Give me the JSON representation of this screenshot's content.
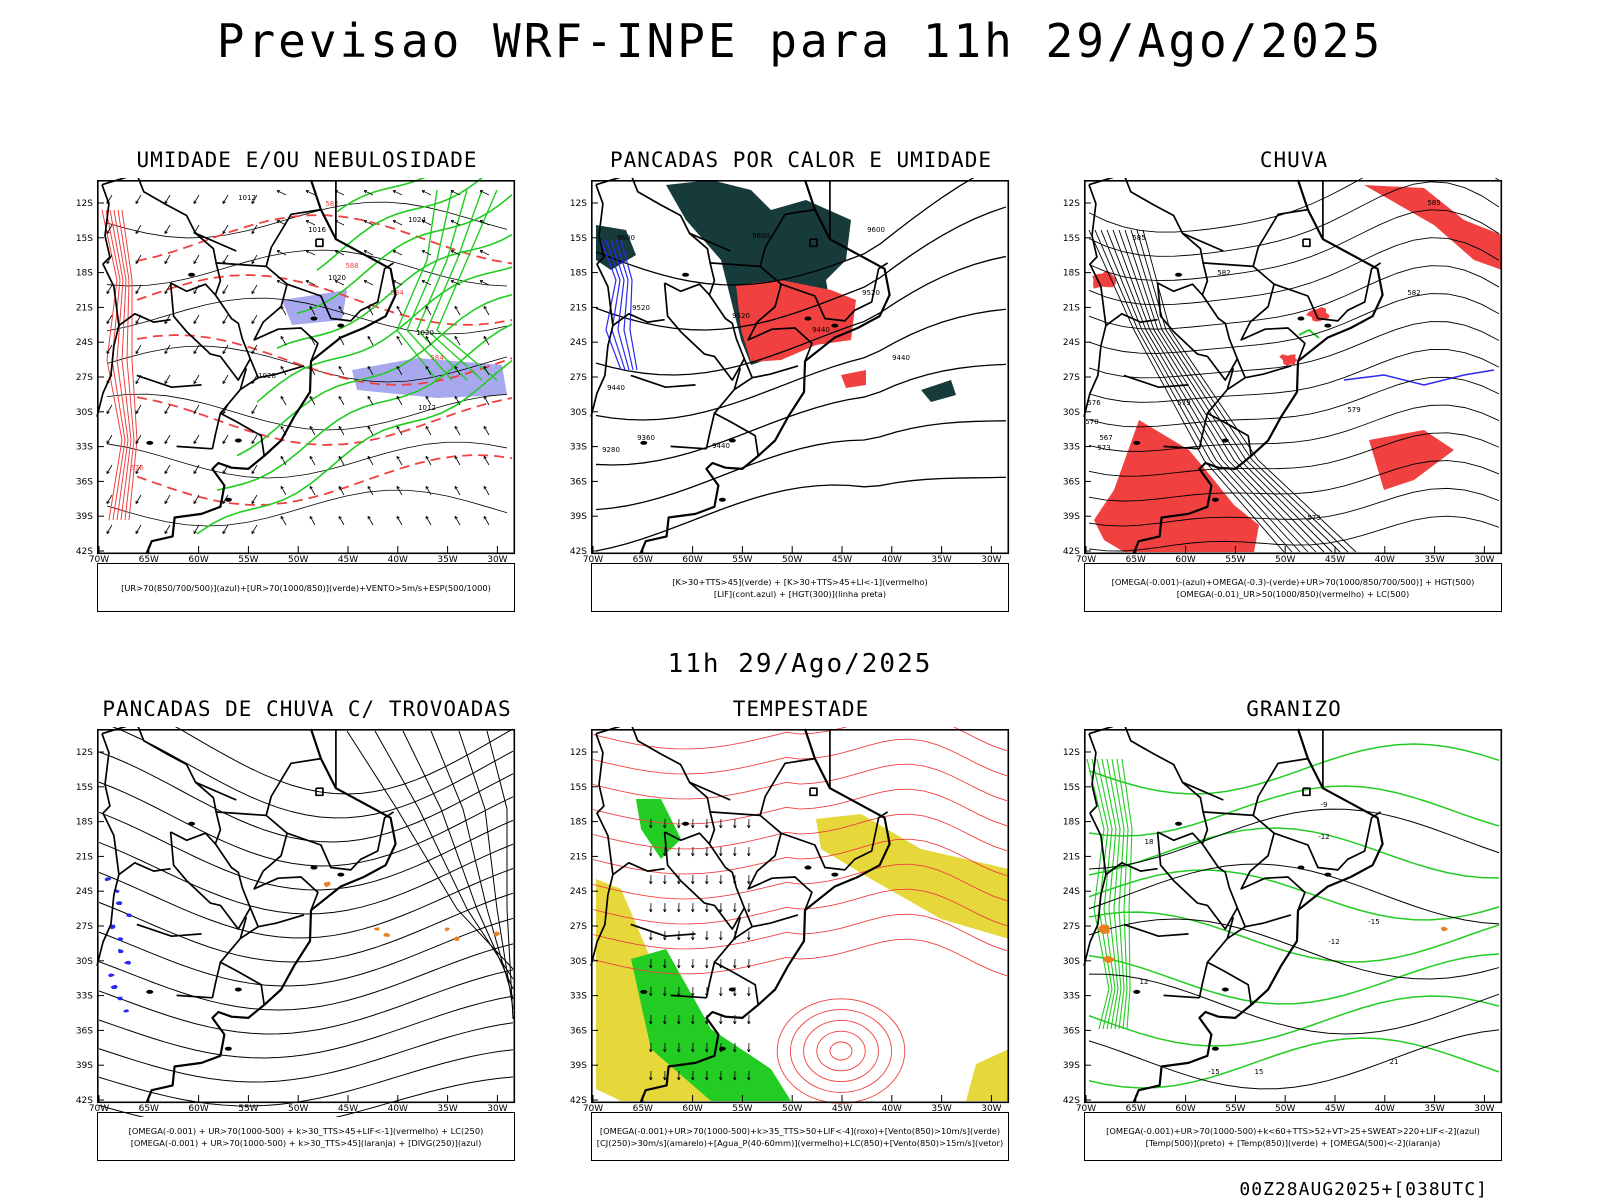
{
  "header": {
    "title": "Previsao WRF-INPE  para 11h 29/Ago/2025"
  },
  "mid_title": "11h 29/Ago/2025",
  "footer": "00Z28AUG2025+[038UTC]",
  "axes": {
    "lat_labels": [
      "12S",
      "15S",
      "18S",
      "21S",
      "24S",
      "27S",
      "30S",
      "33S",
      "36S",
      "39S",
      "42S"
    ],
    "lon_labels": [
      "70W",
      "65W",
      "60W",
      "55W",
      "50W",
      "45W",
      "40W",
      "35W",
      "30W"
    ]
  },
  "colors": {
    "red": "#f04040",
    "green": "#22cc22",
    "lavender": "#a8a8ee",
    "blue": "#2a2aee",
    "darkteal": "#173a3a",
    "yellow": "#e6d83a",
    "orange": "#e88020",
    "black": "#000000"
  },
  "panels": [
    {
      "id": "umidade",
      "title": "UMIDADE E/OU NEBULOSIDADE",
      "legend": [
        "[UR>70(850/700/500)](azul)+[UR>70(1000/850)](verde)+VENTO>5m/s+ESP(500/1000)"
      ],
      "contour_labels": [
        "1012",
        "1016",
        "1020",
        "1024",
        "1020",
        "1028",
        "1012",
        "576",
        "582",
        "588",
        "584",
        "584"
      ]
    },
    {
      "id": "pancadas-calor",
      "title": "PANCADAS POR CALOR E UMIDADE",
      "legend": [
        "[K>30+TTS>45](verde) + [K>30+TTS>45+LI<-1](vermelho)",
        "[LIF](cont.azul) + [HGT(300)](linha preta)"
      ],
      "contour_labels": [
        "9600",
        "9600",
        "9600",
        "9520",
        "9520",
        "9520",
        "9440",
        "9440",
        "9440",
        "9440",
        "9360",
        "9280"
      ]
    },
    {
      "id": "chuva",
      "title": "CHUVA",
      "legend": [
        "[OMEGA(-0.001)-(azul)+OMEGA(-0.3)-(verde)+UR>70(1000/850/700/500)] + HGT(500)",
        "[OMEGA(-0.01)_UR>50(1000/850)(vermelho) + LC(500)"
      ],
      "contour_labels": [
        "585",
        "585",
        "582",
        "582",
        "579",
        "579",
        "576",
        "573",
        "573",
        "570",
        "567"
      ]
    },
    {
      "id": "trovoadas",
      "title": "PANCADAS DE CHUVA C/ TROVOADAS",
      "legend": [
        "[OMEGA(-0.001) + UR>70(1000-500) + k>30_TTS>45+LIF<-1](vermelho) + LC(250)",
        "[OMEGA(-0.001) + UR>70(1000-500) + k>30_TTS>45](laranja) + [DIVG(250)](azul)"
      ],
      "contour_labels": []
    },
    {
      "id": "tempestade",
      "title": "TEMPESTADE",
      "legend": [
        "[OMEGA(-0.001)+UR>70(1000-500)+k>35_TTS>50+LIF<-4](roxo)+[Vento(850)>10m/s](verde)",
        "[CJ(250)>30m/s](amarelo)+[Agua_P(40-60mm)](vermelho)+LC(850)+[Vento(850)>15m/s](vetor)"
      ],
      "contour_labels": []
    },
    {
      "id": "granizo",
      "title": "GRANIZO",
      "legend": [
        "[OMEGA(-0.001)+UR>70(1000-500)+k<60+TTS>52+VT>25+SWEAT>220+LIF<-2](azul)",
        "[Temp(500)](preto) + [Temp(850)](verde) + [OMEGA(500)<-2](laranja)"
      ],
      "contour_labels": [
        "-12",
        "-15",
        "-12",
        "-15",
        "12",
        "18",
        "15",
        "21",
        "-9"
      ]
    }
  ]
}
